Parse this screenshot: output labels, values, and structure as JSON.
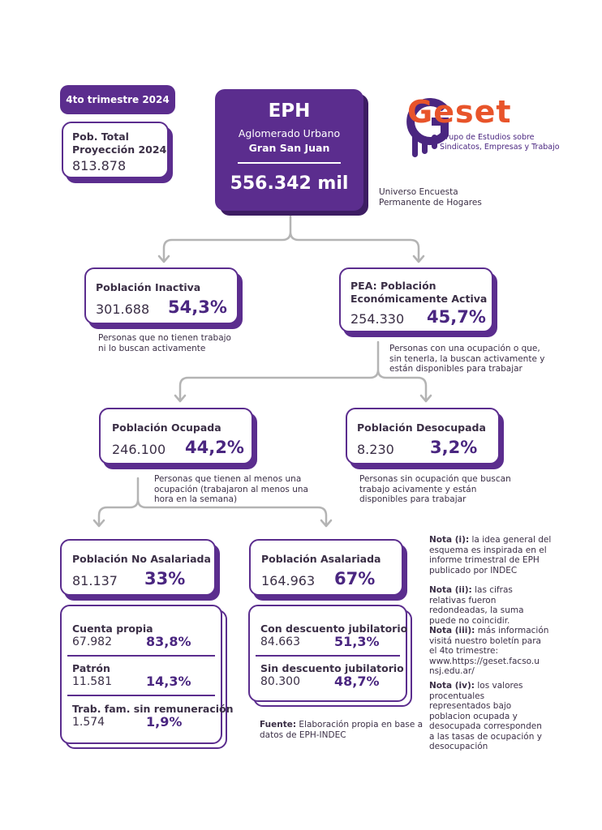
{
  "period_badge": "4to trimestre 2024",
  "population_box": {
    "label_line1": "Pob. Total",
    "label_line2": "Proyección 2024",
    "value": "813.878"
  },
  "eph_box": {
    "title": "EPH",
    "line1": "Aglomerado Urbano",
    "line2": "Gran San Juan",
    "value": "556.342 mil"
  },
  "universe_note": {
    "line1": "Universo Encuesta",
    "line2": "Permanente de Hogares"
  },
  "logo": {
    "brand": "Geset",
    "tagline1": "Grupo de Estudios sobre",
    "tagline2": "Sindicatos, Empresas y Trabajo"
  },
  "inactiva": {
    "title": "Población Inactiva",
    "value": "301.688",
    "pct": "54,3%",
    "desc": "Personas que no tienen trabajo\nni lo buscan activamente"
  },
  "pea": {
    "title_line1": "PEA: Población",
    "title_line2": "Económicamente Activa",
    "value": "254.330",
    "pct": "45,7%",
    "desc": "Personas con una ocupación o que,\nsin tenerla, la buscan activamente y\nestán disponibles para trabajar"
  },
  "ocupada": {
    "title": "Población Ocupada",
    "value": "246.100",
    "pct": "44,2%",
    "desc": "Personas que tienen al menos una\nocupación (trabajaron al menos una\nhora en la semana)"
  },
  "desocupada": {
    "title": "Población Desocupada",
    "value": "8.230",
    "pct": "3,2%",
    "desc": "Personas sin ocupación que buscan\ntrabajo acivamente y están\ndisponibles para trabajar"
  },
  "no_asalariada": {
    "title": "Población No Asalariada",
    "value": "81.137",
    "pct": "33%"
  },
  "asalariada": {
    "title": "Población Asalariada",
    "value": "164.963",
    "pct": "67%"
  },
  "no_asalariada_breakdown": [
    {
      "label": "Cuenta propia",
      "value": "67.982",
      "pct": "83,8%"
    },
    {
      "label": "Patrón",
      "value": "11.581",
      "pct": "14,3%"
    },
    {
      "label": "Trab. fam. sin remuneración",
      "value": "1.574",
      "pct": "1,9%"
    }
  ],
  "asalariada_breakdown": [
    {
      "label": "Con descuento jubilatorio",
      "value": "84.663",
      "pct": "51,3%"
    },
    {
      "label": "Sin descuento jubilatorio",
      "value": "80.300",
      "pct": "48,7%"
    }
  ],
  "source": {
    "label": "Fuente:",
    "text_line1": " Elaboración propia en base a",
    "text_line2": "datos de EPH-INDEC"
  },
  "notes": [
    {
      "label": "Nota (i):",
      "text": " la idea general del\nesquema es inspirada en el\ninforme trimestral de EPH\npublicado por INDEC"
    },
    {
      "label": "Nota (ii):",
      "text": " las cifras\nrelativas fueron\nredondeadas, la suma\npuede no coincidir."
    },
    {
      "label": "Nota (iii):",
      "text": " más información\nvisitá nuestro boletín para\nel 4to trimestre:\nwww.https://geset.facso.u\nnsj.edu.ar/"
    },
    {
      "label": "Nota (iv):",
      "text": " los valores\nprocentuales\nrepresentados bajo\npoblacion ocupada y\ndesocupada corresponden\na las tasas de ocupación y\ndesocupación"
    }
  ],
  "colors": {
    "primary": "#5b2d8e",
    "dark": "#4a2680",
    "accent": "#e8542a",
    "connector": "#b4b4b4"
  }
}
